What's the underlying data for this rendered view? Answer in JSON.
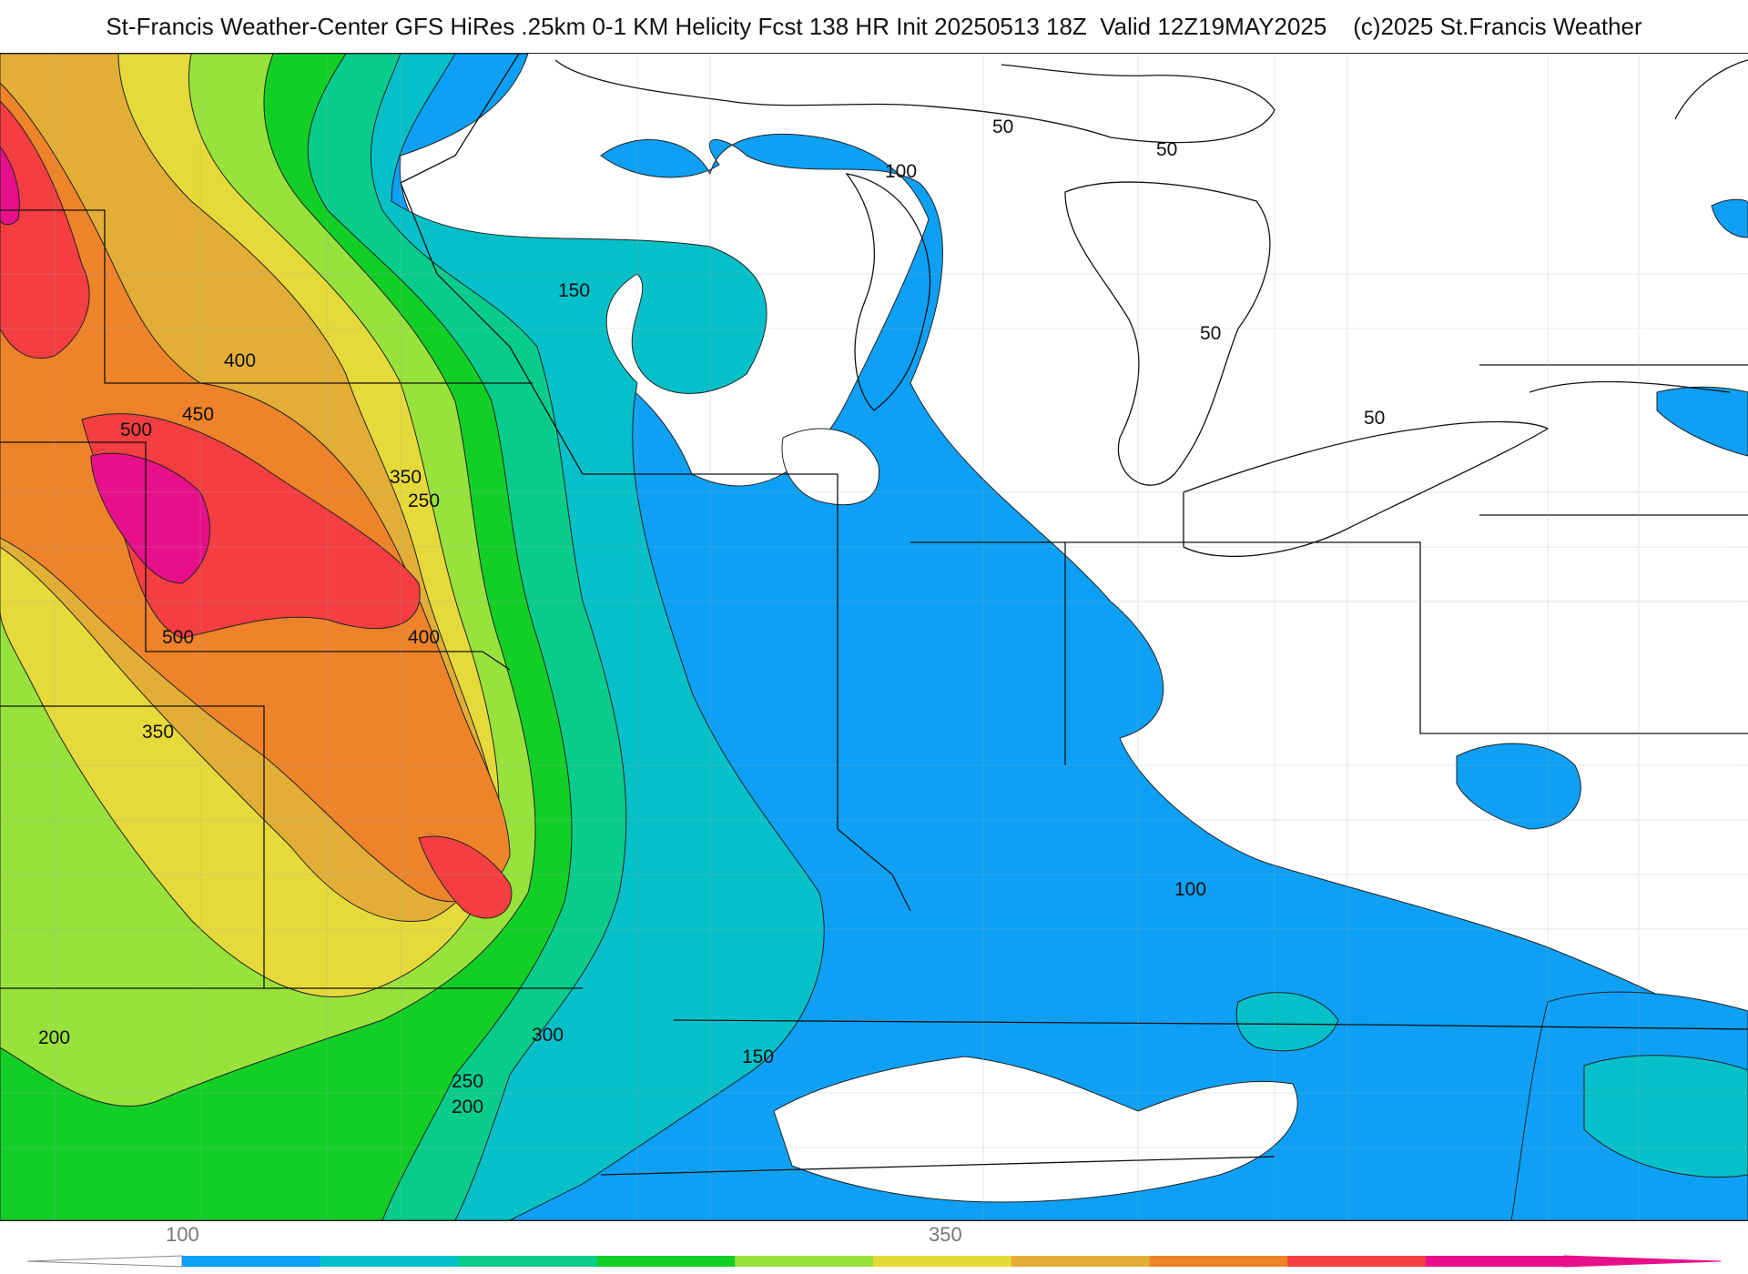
{
  "title": "St-Francis Weather-Center GFS HiRes .25km 0-1 KM Helicity Fcst 138 HR Init 20250513 18Z  Valid 12Z19MAY2025    (c)2025 St.Francis Weather",
  "contour_labels": [
    "50",
    "50",
    "100",
    "150",
    "50",
    "50",
    "400",
    "450",
    "500",
    "350",
    "250",
    "500",
    "400",
    "350",
    "100",
    "200",
    "300",
    "150",
    "250",
    "200"
  ],
  "colorbar": {
    "tick_labels": [
      "100",
      "350"
    ],
    "colors": [
      "#0da0f5",
      "#05c0c8",
      "#08cc8c",
      "#12cf26",
      "#98e23c",
      "#e6da3a",
      "#e2ae36",
      "#ee832a",
      "#f43e42",
      "#e8108a"
    ]
  },
  "palette": {
    "blue": "#0da0f5",
    "cyan": "#05c0c8",
    "teal": "#08cc8c",
    "green": "#12cf26",
    "lime": "#98e23c",
    "yellow": "#e6da3a",
    "gold": "#e2ae36",
    "orange": "#ee832a",
    "red": "#f43e42",
    "magenta": "#e8108a"
  }
}
